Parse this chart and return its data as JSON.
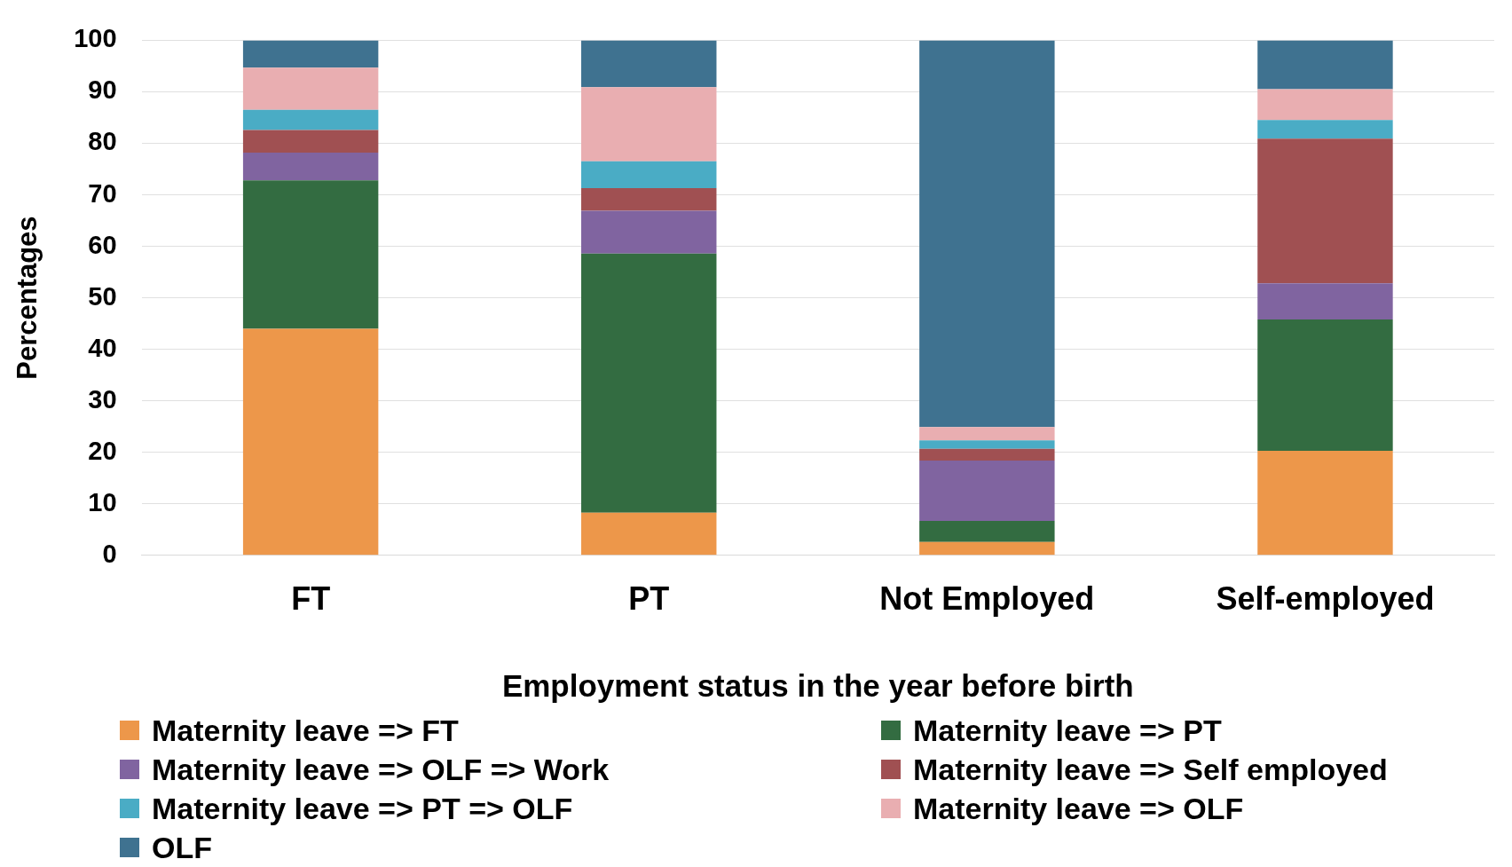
{
  "chart_data": {
    "type": "bar",
    "stacked": true,
    "xlabel": "Employment status in the year before birth",
    "ylabel": "Percentages",
    "categories": [
      "FT",
      "PT",
      "Not Employed",
      "Self-employed"
    ],
    "ylim": [
      0,
      100
    ],
    "yticks": [
      0,
      10,
      20,
      30,
      40,
      50,
      60,
      70,
      80,
      90,
      100
    ],
    "grid": "y",
    "legend": "bottom",
    "series": [
      {
        "name": "Maternity leave => FT",
        "color": "#ed974a",
        "values": [
          44.0,
          8.3,
          2.6,
          20.3
        ]
      },
      {
        "name": "Maternity leave => PT",
        "color": "#336c41",
        "values": [
          28.8,
          50.3,
          4.1,
          25.5
        ]
      },
      {
        "name": "Maternity leave => OLF => Work",
        "color": "#8064a0",
        "values": [
          5.4,
          8.3,
          11.7,
          7.0
        ]
      },
      {
        "name": "Maternity leave => Self employed",
        "color": "#a05052",
        "values": [
          4.4,
          4.4,
          2.3,
          28.1
        ]
      },
      {
        "name": "Maternity leave => PT => OLF",
        "color": "#4aacc5",
        "values": [
          3.9,
          5.2,
          1.6,
          3.6
        ]
      },
      {
        "name": "Maternity leave => OLF",
        "color": "#e9aeb1",
        "values": [
          8.2,
          14.4,
          2.6,
          6.0
        ]
      },
      {
        "name": "OLF",
        "color": "#3f7290",
        "values": [
          5.3,
          9.1,
          75.1,
          9.5
        ]
      }
    ]
  }
}
